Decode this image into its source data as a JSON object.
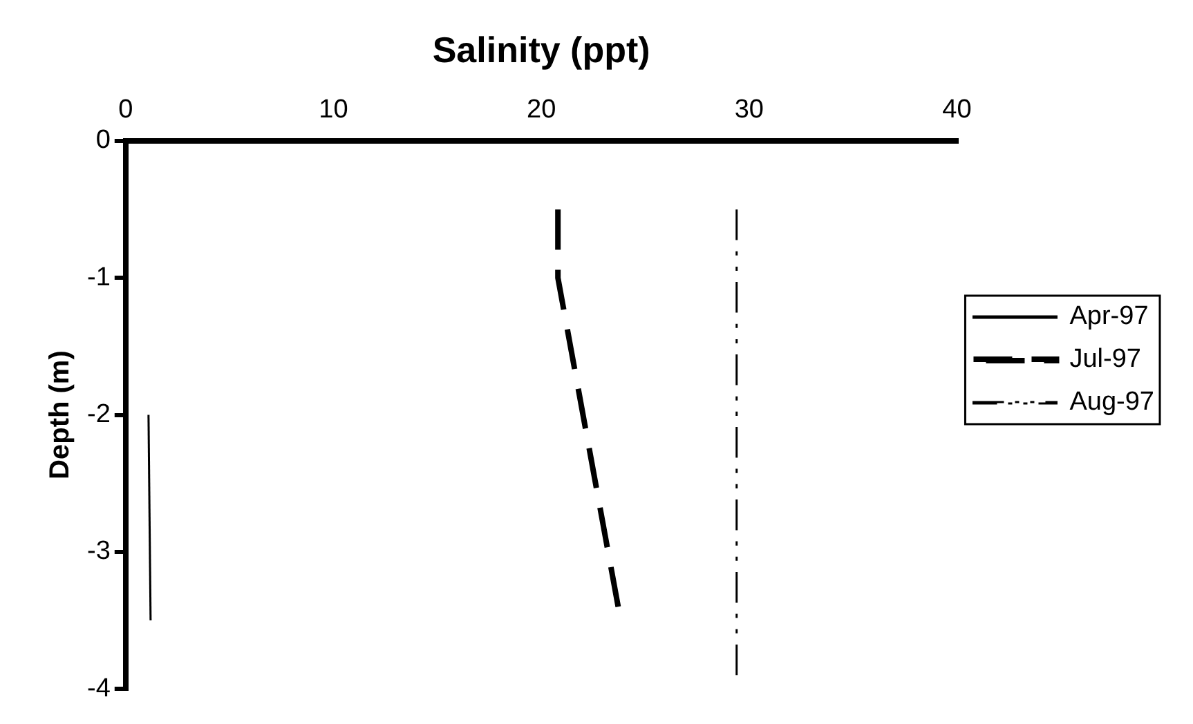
{
  "chart_data": {
    "type": "line",
    "xlabel": "Salinity (ppt)",
    "ylabel": "Depth (m)",
    "xlim": [
      0,
      40
    ],
    "xticks": [
      0,
      10,
      20,
      30,
      40
    ],
    "ylim": [
      -4,
      0
    ],
    "yticks": [
      -4,
      -3,
      -2,
      -1,
      0
    ],
    "grid": false,
    "legend": "right",
    "marker": "none",
    "series": [
      {
        "name": "Apr-97",
        "color": "#000000",
        "line_style": "solid",
        "x": [
          1.1,
          1.2
        ],
        "values": [
          -2,
          -3.5
        ]
      },
      {
        "name": "Jul-97",
        "color": "#000000",
        "line_style": "dashed",
        "x": [
          20.8,
          20.8,
          23.7
        ],
        "values": [
          -0.5,
          -1,
          -3.4
        ]
      },
      {
        "name": "Aug-97",
        "color": "#000000",
        "line_style": "dotted",
        "x": [
          29.4,
          29.4
        ],
        "values": [
          -0.5,
          -3.9
        ]
      }
    ]
  }
}
